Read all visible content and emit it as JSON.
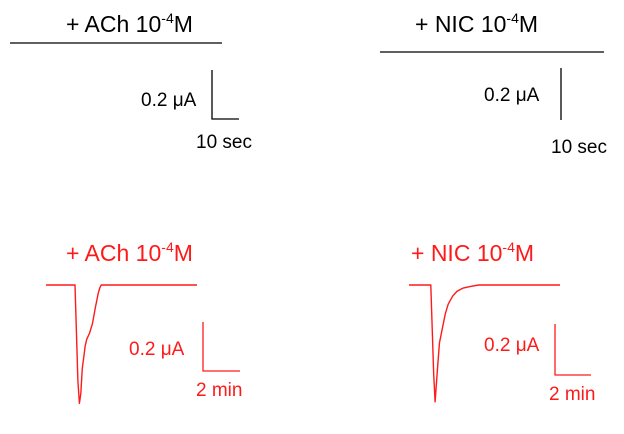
{
  "colors": {
    "control": "#000000",
    "response": "#ff1a1a"
  },
  "chart_data": [
    {
      "type": "line",
      "panel": "ACh control",
      "title": {
        "prefix": "+ ACh 10",
        "exponent": "-4",
        "suffix": "M"
      },
      "scale_bar": {
        "current_label": "0.2 μA",
        "time_label": "10 sec"
      },
      "color": "#000000",
      "series": [
        {
          "x": [
            0,
            60
          ],
          "y": [
            0,
            0
          ]
        }
      ]
    },
    {
      "type": "line",
      "panel": "NIC control",
      "title": {
        "prefix": "+ NIC 10",
        "exponent": "-4",
        "suffix": "M"
      },
      "scale_bar": {
        "current_label": "0.2 μA",
        "time_label": "10 sec"
      },
      "color": "#000000",
      "series": [
        {
          "x": [
            0,
            60
          ],
          "y": [
            0,
            0
          ]
        }
      ]
    },
    {
      "type": "line",
      "panel": "ACh response",
      "title": {
        "prefix": "+ ACh 10",
        "exponent": "-4",
        "suffix": "M"
      },
      "scale_bar": {
        "current_label": "0.2 μA",
        "time_label": "2 min"
      },
      "color": "#ff1a1a",
      "series": [
        {
          "x": [
            0,
            2.0,
            2.2,
            2.3,
            2.4,
            2.5,
            2.6,
            2.7,
            2.8,
            3.0,
            3.2,
            3.4,
            3.6,
            3.7,
            3.8,
            4.0,
            4.3,
            4.8,
            5.5,
            6.5,
            8.0,
            10.4
          ],
          "y": [
            0,
            0,
            -0.6,
            -0.74,
            -0.68,
            -0.52,
            -0.45,
            -0.38,
            -0.34,
            -0.3,
            -0.24,
            -0.14,
            -0.05,
            -0.02,
            0.0,
            0.0,
            0.0,
            0.0,
            0.0,
            0.0,
            0.0,
            0.0
          ]
        }
      ]
    },
    {
      "type": "line",
      "panel": "NIC response",
      "title": {
        "prefix": "+ NIC 10",
        "exponent": "-4",
        "suffix": "M"
      },
      "scale_bar": {
        "current_label": "0.2 μA",
        "time_label": "2 min"
      },
      "color": "#ff1a1a",
      "series": [
        {
          "x": [
            0,
            1.5,
            1.7,
            1.8,
            1.9,
            2.0,
            2.1,
            2.3,
            2.5,
            2.7,
            3.0,
            3.3,
            3.7,
            4.2,
            4.8,
            5.5,
            6.5,
            8.0,
            10.4
          ],
          "y": [
            0,
            0,
            -0.56,
            -0.73,
            -0.6,
            -0.48,
            -0.36,
            -0.27,
            -0.18,
            -0.12,
            -0.07,
            -0.04,
            -0.02,
            -0.01,
            0.0,
            0.0,
            0.0,
            0.0,
            0.0
          ]
        }
      ]
    }
  ]
}
